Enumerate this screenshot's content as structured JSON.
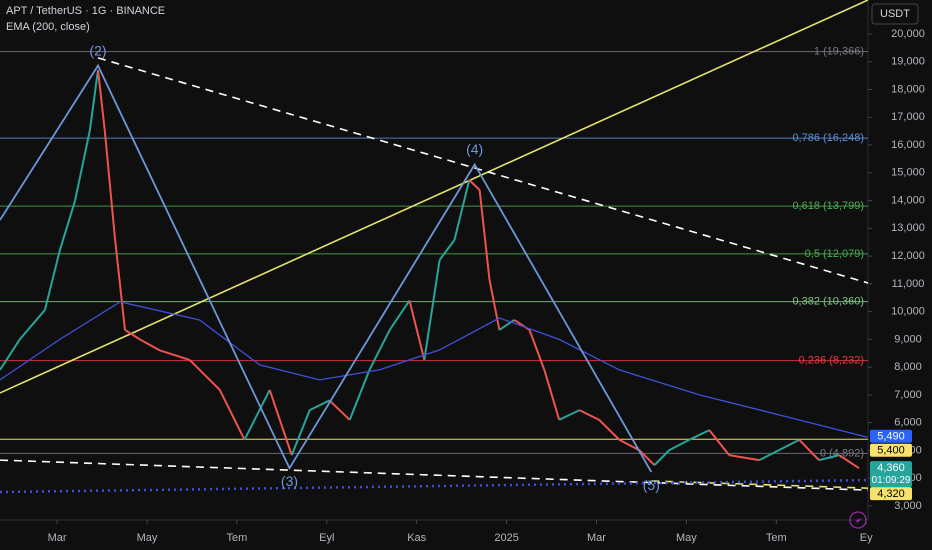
{
  "chart_data": {
    "type": "line",
    "title": "APT / TetherUS · 1G · BINANCE",
    "subtitle": "EMA (200, close)",
    "currency": "USDT",
    "xlim": [
      0.73,
      20.04
    ],
    "ylim": [
      2493,
      21225
    ],
    "xticks": [
      {
        "value": 2,
        "label": "Mar"
      },
      {
        "value": 4,
        "label": "May"
      },
      {
        "value": 6,
        "label": "Tem"
      },
      {
        "value": 8,
        "label": "Eyl"
      },
      {
        "value": 10,
        "label": "Kas"
      },
      {
        "value": 12,
        "label": "2025"
      },
      {
        "value": 14,
        "label": "Mar"
      },
      {
        "value": 16,
        "label": "May"
      },
      {
        "value": 18,
        "label": "Tem"
      },
      {
        "value": 20,
        "label": "Ey"
      }
    ],
    "yticks": [
      {
        "value": 3000,
        "label": "3,000"
      },
      {
        "value": 4000,
        "label": "4,000"
      },
      {
        "value": 5000,
        "label": "5,000"
      },
      {
        "value": 6000,
        "label": "6,000"
      },
      {
        "value": 7000,
        "label": "7,000"
      },
      {
        "value": 8000,
        "label": "8,000"
      },
      {
        "value": 9000,
        "label": "9,000"
      },
      {
        "value": 10000,
        "label": "10,000"
      },
      {
        "value": 11000,
        "label": "11,000"
      },
      {
        "value": 12000,
        "label": "12,000"
      },
      {
        "value": 13000,
        "label": "13,000"
      },
      {
        "value": 14000,
        "label": "14,000"
      },
      {
        "value": 15000,
        "label": "15,000"
      },
      {
        "value": 16000,
        "label": "16,000"
      },
      {
        "value": 17000,
        "label": "17,000"
      },
      {
        "value": 18000,
        "label": "18,000"
      },
      {
        "value": 19000,
        "label": "19,000"
      },
      {
        "value": 20000,
        "label": "20,000"
      }
    ],
    "series": [
      {
        "name": "APT / TetherUS",
        "up_color": "#26a69a",
        "down_color": "#ef5350",
        "x": [
          0.73,
          1.17,
          1.73,
          2.06,
          2.4,
          2.73,
          2.91,
          3.06,
          3.29,
          3.51,
          3.84,
          4.29,
          4.95,
          5.62,
          6.17,
          6.73,
          7.22,
          7.62,
          8.06,
          8.51,
          8.95,
          9.4,
          9.84,
          10.17,
          10.51,
          10.84,
          11.17,
          11.4,
          11.62,
          11.84,
          12.17,
          12.51,
          12.84,
          13.17,
          13.62,
          14.06,
          14.51,
          14.95,
          15.29,
          15.62,
          16.06,
          16.51,
          16.95,
          17.62,
          18.06,
          18.51,
          18.95,
          19.4,
          19.84
        ],
        "values": [
          7900,
          9000,
          10060,
          12200,
          14000,
          16540,
          18700,
          16540,
          12600,
          9340,
          9000,
          8600,
          8260,
          7180,
          5380,
          7180,
          4830,
          6450,
          6800,
          6100,
          7900,
          9340,
          10400,
          8260,
          11860,
          12580,
          14740,
          14380,
          11140,
          9340,
          9700,
          9340,
          7900,
          6100,
          6450,
          6100,
          5380,
          5010,
          4470,
          5010,
          5380,
          5730,
          4830,
          4650,
          5010,
          5380,
          4650,
          4830,
          4360
        ]
      },
      {
        "name": "EMA (200, close)",
        "color": "#3f51d9",
        "x": [
          0.73,
          2.06,
          3.4,
          5.17,
          6.51,
          7.84,
          9.17,
          10.51,
          11.84,
          13.17,
          14.51,
          16.29,
          18.06,
          20.02
        ],
        "values": [
          7540,
          9000,
          10350,
          9700,
          8080,
          7540,
          7900,
          8620,
          9770,
          9000,
          7900,
          7000,
          6280,
          5480
        ]
      }
    ],
    "fib_levels": [
      {
        "label": "1 (19,366)",
        "value": 19366,
        "color": "#787b86"
      },
      {
        "label": "0,786 (16,248)",
        "value": 16248,
        "color": "#5b8fd6"
      },
      {
        "label": "0,618 (13,799)",
        "value": 13799,
        "color": "#4caf50"
      },
      {
        "label": "0,5 (12,079)",
        "value": 12079,
        "color": "#4caf50"
      },
      {
        "label": "0,382 (10,360)",
        "value": 10360,
        "color": "#81c784"
      },
      {
        "label": "0,236 (8,232)",
        "value": 8232,
        "color": "#f23645"
      },
      {
        "label": "0 (4,892)",
        "value": 4892,
        "color": "#787b86"
      }
    ],
    "horizontal_lines": [
      {
        "value": 5400,
        "color": "#e6e36b"
      }
    ],
    "waves": {
      "color": "#6d97d8",
      "x": [
        0.73,
        2.91,
        7.17,
        11.29,
        15.22
      ],
      "values": [
        13300,
        18860,
        4360,
        15300,
        4220
      ],
      "labels": [
        null,
        "(2)",
        "(3)",
        "(4)",
        "(5)"
      ]
    },
    "trend_lines": [
      {
        "color": "#e6e36b",
        "style": "solid",
        "x": [
          0.73,
          20.04
        ],
        "values": [
          7070,
          21225
        ]
      },
      {
        "color": "#ffffff",
        "style": "dashed",
        "x": [
          2.91,
          20.04
        ],
        "values": [
          19140,
          11030
        ]
      },
      {
        "color": "#ffffff",
        "style": "dashed",
        "x": [
          0.73,
          20.04
        ],
        "values": [
          4650,
          3570
        ]
      },
      {
        "color": "#e6e36b",
        "style": "dashed",
        "x": [
          15.22,
          20.04
        ],
        "values": [
          3900,
          3640
        ]
      },
      {
        "color": "#3f51d9",
        "style": "dotted",
        "x": [
          0.73,
          20.04
        ],
        "values": [
          3500,
          3930
        ]
      }
    ],
    "badges": [
      {
        "label": "5,490",
        "value": 5490,
        "color": "#2962ff",
        "text_color": "#ffffff"
      },
      {
        "label": "5,400",
        "value": 5400,
        "color": "#f7e26b",
        "text_color": "#000000"
      },
      {
        "label": "4,360",
        "value": 4360,
        "color": "#26a69a",
        "text_color": "#ffffff",
        "countdown": "01:09:29"
      },
      {
        "label": "4,320",
        "value": 4320,
        "color": "#f7e26b",
        "text_color": "#000000"
      }
    ]
  }
}
